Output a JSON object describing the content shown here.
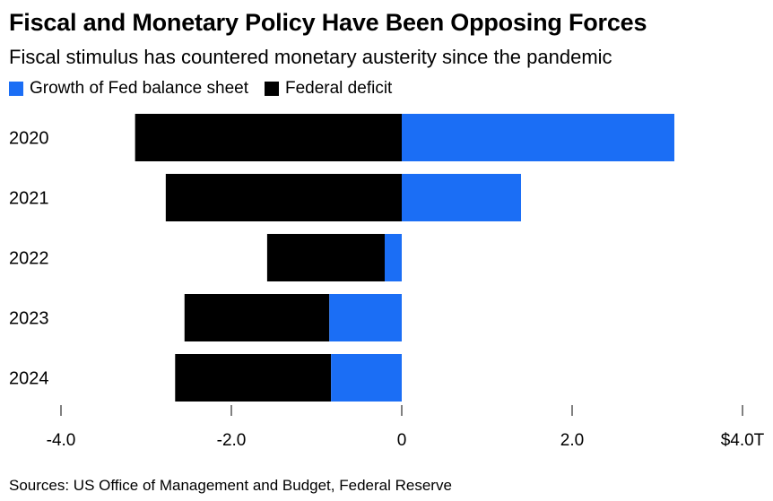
{
  "title": "Fiscal and Monetary Policy Have Been Opposing Forces",
  "subtitle": "Fiscal stimulus has countered monetary austerity since the pandemic",
  "source": "Sources: US Office of Management and Budget, Federal Reserve",
  "colors": {
    "fed": "#1b6ef5",
    "deficit": "#000000",
    "axis": "#cccccc"
  },
  "legend": [
    {
      "label": "Growth of Fed balance sheet",
      "color": "#1b6ef5"
    },
    {
      "label": "Federal deficit",
      "color": "#000000"
    }
  ],
  "chart_data": {
    "type": "bar",
    "orientation": "horizontal",
    "stacked": true,
    "categories": [
      "2020",
      "2021",
      "2022",
      "2023",
      "2024"
    ],
    "series": [
      {
        "name": "Growth of Fed balance sheet",
        "values": [
          3.2,
          1.4,
          -0.2,
          -0.85,
          -0.83
        ]
      },
      {
        "name": "Federal deficit",
        "values": [
          -3.13,
          -2.77,
          -1.38,
          -1.7,
          -1.83
        ]
      }
    ],
    "xlim": [
      -4.0,
      4.0
    ],
    "xticks": [
      -4.0,
      -2.0,
      0,
      2.0,
      4.0
    ],
    "xtick_labels": [
      "-4.0",
      "-2.0",
      "0",
      "2.0",
      "$4.0T"
    ],
    "xlabel": "",
    "ylabel": ""
  }
}
